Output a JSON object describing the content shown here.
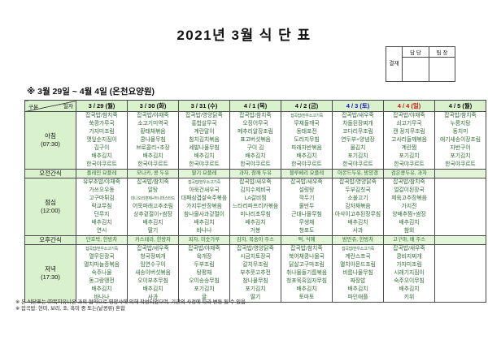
{
  "title": "2021년 3월 식 단 표",
  "subtitle": "※ 3월 29일 ~ 4월 4일 (온천요양원)",
  "approval": {
    "label": "결재",
    "columns": [
      "담 당",
      "팀 장"
    ]
  },
  "corner": {
    "top": "일자",
    "bottom": "구분"
  },
  "meals": {
    "breakfast": {
      "name": "아침",
      "time": "(07:30)"
    },
    "am_snack": {
      "name": "오전간식"
    },
    "lunch": {
      "name": "점심",
      "time": "(12:00)"
    },
    "pm_snack": {
      "name": "오후간식"
    },
    "dinner": {
      "name": "저녁",
      "time": "(17:30)"
    }
  },
  "colors": {
    "header_bg": "#d9f1cd",
    "snack_bg": "#e2f5d9",
    "menu_text": "#2f6b33",
    "border": "#4a4a4a",
    "weekday": "#111111",
    "saturday": "#1616c8",
    "sunday": "#d01414"
  },
  "days": [
    {
      "date": "3 / 29 (월)",
      "color": "#111111",
      "breakfast": [
        "잡곡밥/참치죽",
        "쑥콩가루국",
        "가자미조림",
        "깻잎순지짐이",
        "김구이",
        "배추김치",
        "한국야쿠르트"
      ],
      "am_snack": "플레인 요플레",
      "lunch": [
        "유부초밥/야채죽",
        "가쓰오우동",
        "고구마튀김",
        "락교무침",
        "단무지",
        "배추김치",
        "연시"
      ],
      "pm_snack": "단호박, 한방차",
      "dinner": [
        "잡곡밥/한우소고기죽",
        "열무된장국",
        "멸치마늘종볶음",
        "숙주나물",
        "동그랑땡전",
        "배추김치",
        "바나나"
      ]
    },
    {
      "date": "3 / 30 (화)",
      "color": "#111111",
      "breakfast": [
        "잡곡밥/야채죽",
        "소고기미역국",
        "황태채볶음",
        "콩나물무침",
        "브로콜리+초장",
        "배추김치",
        "한국야쿠르트"
      ],
      "am_snack": "모나카, 콩 두유",
      "lunch": [
        "잡곡밥/참치죽",
        "알탕",
        "미니오리훈제+허니머스타드",
        "어묵파래고추조림",
        "상추겉절이+쌈장",
        "배추김치",
        "딸기"
      ],
      "pm_snack": "카스테라, 한방차",
      "dinner": [
        "잡곡밥/새우죽",
        "청국장찌개",
        "임연수구이",
        "새송이버섯볶음",
        "오이부추무침",
        "배추김치",
        "사과"
      ]
    },
    {
      "date": "3 / 31 (수)",
      "color": "#111111",
      "breakfast": [
        "잡곡밥/영양닭죽",
        "홍합살무국",
        "계란말이",
        "참치김치볶음",
        "세발나물무침",
        "배추김치",
        "한국야쿠르트"
      ],
      "am_snack": "딸기 요플레",
      "lunch": [
        "잡곡밥/한우소고기죽",
        "아욱건새우국",
        "대패삼겹살숙주볶음",
        "가지두반장볶음",
        "참나물사과겉절이",
        "배추김치",
        "바나나"
      ],
      "pm_snack": "피자, 미숫가루",
      "dinner": [
        "잡곡밥/야채죽",
        "육개장",
        "두부조림",
        "탕평채",
        "오이송송무침",
        "포기김치",
        "귤"
      ]
    },
    {
      "date": "4 / 1 (목)",
      "color": "#111111",
      "breakfast": [
        "잡곡밥/참치죽",
        "오징어무국",
        "메추리알장조림",
        "표고버섯볶음",
        "구이 김",
        "배추김치",
        "한국야쿠르트"
      ],
      "am_snack": "과자, 참깨 두유",
      "lunch": [
        "잡곡밥/새우죽",
        "김치수제비국",
        "LA갈비찜",
        "느타리파프리카볶음",
        "미나리초무침",
        "배추김치",
        "거봉"
      ],
      "pm_snack": "감자, 복숭아 주스",
      "dinner": [
        "잡곡밥/영양닭죽",
        "시금치토장국",
        "갈치무조림",
        "부추풋고추전",
        "참나물무침",
        "포기김치",
        "딸기"
      ]
    },
    {
      "date": "4 / 2 (금)",
      "color": "#111111",
      "breakfast": [
        "잡곡밥/한우소고기죽",
        "무채들깨국",
        "동태포전",
        "도라지무침",
        "파래자반볶음",
        "배추김치",
        "한국야쿠르트"
      ],
      "am_snack": "블루베리 요플레",
      "lunch": [
        "잡곡밥/새우죽",
        "설렁탕",
        "깍두기",
        "물만두",
        "근대나물무침",
        "무생채",
        "청포도"
      ],
      "pm_snack": "떡, 식혜",
      "dinner": [
        "잡곡밥/참치죽",
        "북어채콩나물국",
        "닭살고구마조림",
        "취나물들기름볶음",
        "청포묵흑임자무침",
        "배추김치",
        "토마토"
      ]
    },
    {
      "date": "4 / 3 (토)",
      "color": "#1616c8",
      "breakfast": [
        "잡곡밥/새우죽",
        "차돌된장찌개",
        "코다리무조림",
        "연두부+양념장",
        "물김치",
        "포기김치",
        "한국야쿠르트"
      ],
      "am_snack": "아몬드두유, 밤양갱",
      "lunch": [
        "잡곡밥/영양닭죽",
        "두부김칫국",
        "소불고기",
        "감자채볶음",
        "아삭이고추된장무침",
        "배추김치",
        "사과"
      ],
      "pm_snack": "밤만쥬, 한방차",
      "dinner": [
        "잡곡밥/한우소고기죽",
        "계란스프국",
        "멸치아몬드조림",
        "비름나물무침",
        "짜장밥",
        "배추김치",
        "파인애플"
      ]
    },
    {
      "date": "4 / 4 (일)",
      "color": "#d01414",
      "breakfast": [
        "잡곡밥/야채죽",
        "쇠고기무국",
        "캔 꽁치무조림",
        "고사리들깨볶음",
        "계란찜",
        "포기김치",
        "한국야쿠르트"
      ],
      "am_snack": "검은콩두유, 과자",
      "lunch": [
        "잡곡밥/참치죽",
        "얼갈이된장국",
        "제육고추장볶음",
        "가지전",
        "양배추찜+쌈장",
        "배추김치",
        "참외"
      ],
      "pm_snack": "고구마, 배 주스",
      "dinner": [
        "잡곡밥/새우죽",
        "콩비지찌개",
        "가자미조림",
        "시래기지짐이",
        "숙주오이무침",
        "배추김치",
        "키위"
      ]
    },
    {
      "date": "4 / 5 (월)",
      "color": "#111111",
      "breakfast": [
        "잡곡밥/참치죽",
        "누룽지탕",
        "동치미",
        "애기새송이장조림",
        "자반구이",
        "포기김치",
        "한국야쿠르트"
      ],
      "am_snack": "",
      "lunch": [
        "",
        "",
        "",
        "",
        "",
        "",
        ""
      ],
      "pm_snack": "",
      "dinner": [
        "",
        "",
        "",
        "",
        "",
        "",
        ""
      ]
    }
  ],
  "notes": [
    "※ 본 식단표는 ㈜복지유니온 과의 협약으로 영양사에 의해 작성되었으며, 기관의 사정에 따라 변동 될 수 있음",
    "※ 잡곡밥: 현미, 보리, 조, 흑미 중 또는(낱콩류) 혼합"
  ]
}
